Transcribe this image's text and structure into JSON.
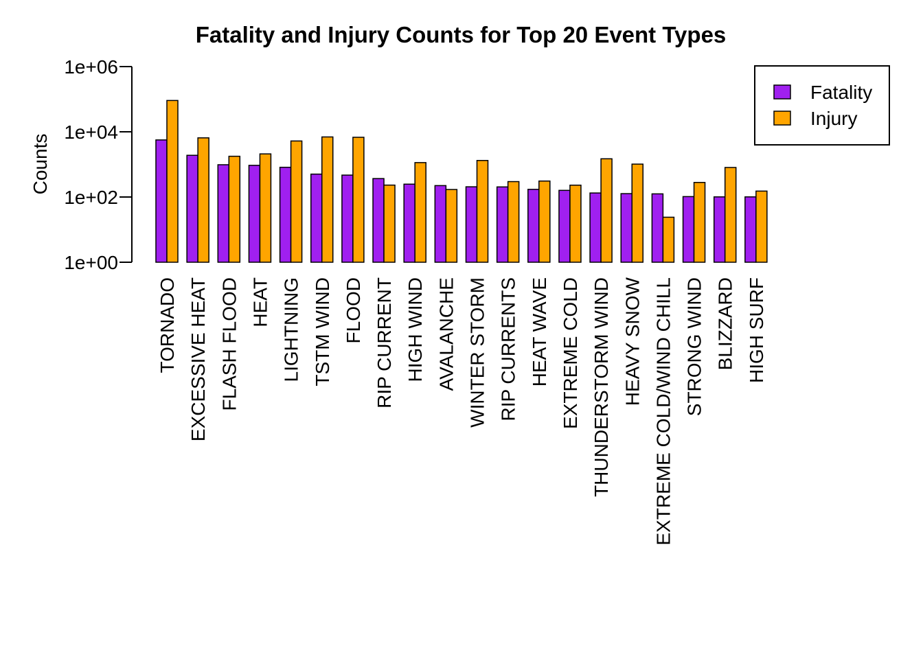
{
  "chart_data": {
    "type": "bar",
    "title": "Fatality and Injury Counts for Top 20 Event Types",
    "xlabel": "",
    "ylabel": "Counts",
    "y_scale": "log10",
    "ylim": [
      1,
      1000000
    ],
    "y_ticks": [
      {
        "value": 1,
        "label": "1e+00"
      },
      {
        "value": 100,
        "label": "1e+02"
      },
      {
        "value": 10000,
        "label": "1e+04"
      },
      {
        "value": 1000000,
        "label": "1e+06"
      }
    ],
    "categories": [
      "TORNADO",
      "EXCESSIVE HEAT",
      "FLASH FLOOD",
      "HEAT",
      "LIGHTNING",
      "TSTM WIND",
      "FLOOD",
      "RIP CURRENT",
      "HIGH WIND",
      "AVALANCHE",
      "WINTER STORM",
      "RIP CURRENTS",
      "HEAT WAVE",
      "EXTREME COLD",
      "THUNDERSTORM WIND",
      "HEAVY SNOW",
      "EXTREME COLD/WIND CHILL",
      "STRONG WIND",
      "BLIZZARD",
      "HIGH SURF"
    ],
    "series": [
      {
        "name": "Fatality",
        "color": "#A020F0",
        "values": [
          5633,
          1903,
          978,
          937,
          816,
          504,
          470,
          368,
          248,
          224,
          206,
          204,
          172,
          160,
          133,
          127,
          125,
          103,
          101,
          101
        ]
      },
      {
        "name": "Injury",
        "color": "#FFA500",
        "values": [
          91346,
          6525,
          1777,
          2100,
          5230,
          6957,
          6789,
          232,
          1137,
          170,
          1321,
          297,
          309,
          231,
          1488,
          1021,
          24,
          280,
          805,
          152
        ]
      }
    ],
    "legend": {
      "position": "top-right",
      "entries": [
        "Fatality",
        "Injury"
      ]
    },
    "grid": false
  }
}
